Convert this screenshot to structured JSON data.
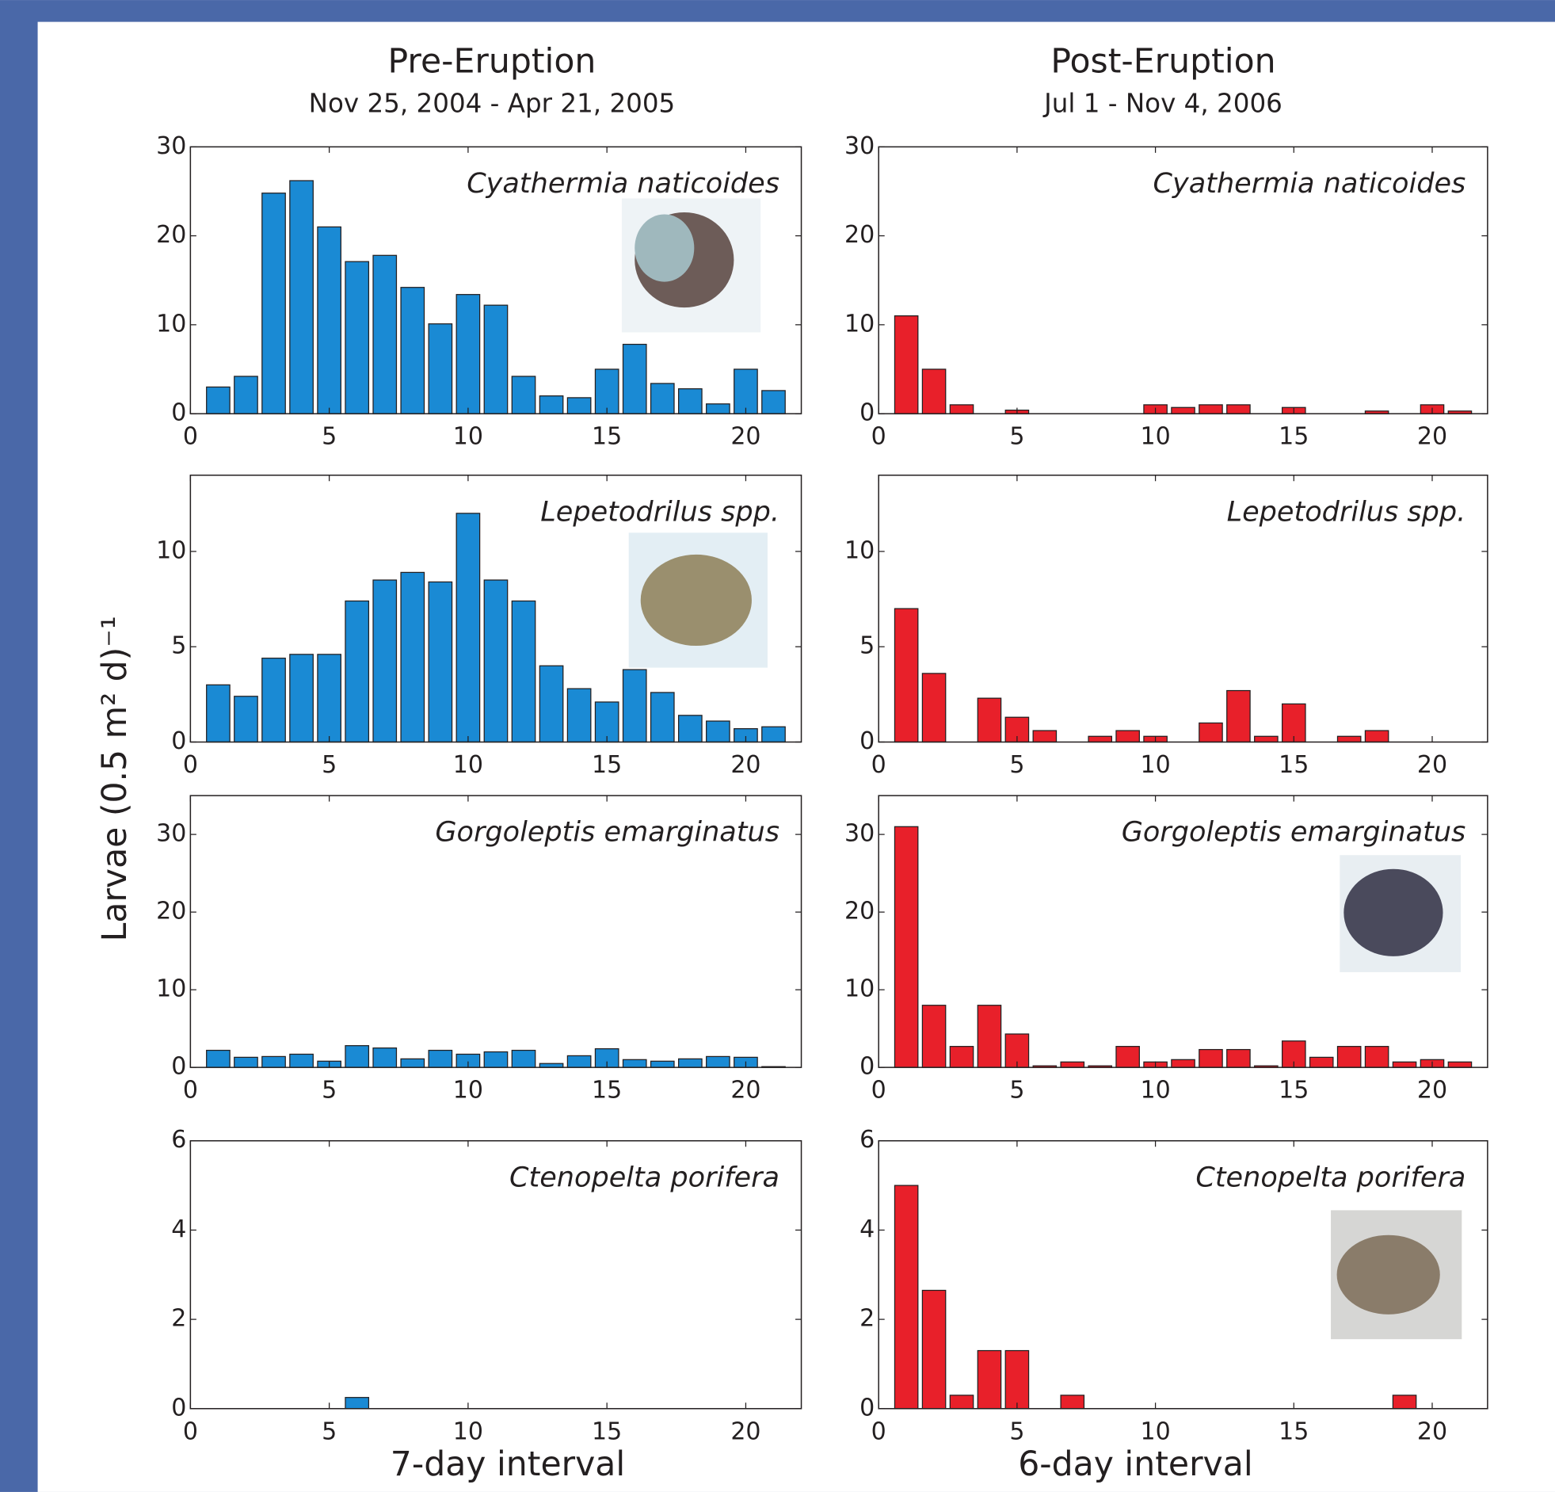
{
  "columns": [
    {
      "title": "Pre-Eruption",
      "subtitle": "Nov 25, 2004 - Apr 21, 2005",
      "xlabel": "7-day interval"
    },
    {
      "title": "Post-Eruption",
      "subtitle": "Jul 1 - Nov 4, 2006",
      "xlabel": "6-day interval"
    }
  ],
  "ylabel": "Larvae (0.5 m² d)⁻¹",
  "chart_data": [
    {
      "type": "bar",
      "annotation": "Cyathermia naticoides",
      "color": "#1a8ad4",
      "x": [
        1,
        2,
        3,
        4,
        5,
        6,
        7,
        8,
        9,
        10,
        11,
        12,
        13,
        14,
        15,
        16,
        17,
        18,
        19,
        20,
        21
      ],
      "values": [
        3,
        4.2,
        24.8,
        26.2,
        21,
        17.1,
        17.8,
        14.2,
        10.1,
        13.4,
        12.2,
        4.2,
        2,
        1.8,
        5,
        7.8,
        3.4,
        2.8,
        1.1,
        5,
        2.6
      ],
      "xlim": [
        0,
        22
      ],
      "ylim": [
        0,
        30
      ],
      "xticks": [
        0,
        5,
        10,
        15,
        20
      ],
      "yticks": [
        0,
        10,
        20,
        30
      ]
    },
    {
      "type": "bar",
      "annotation": "Cyathermia naticoides",
      "color": "#e8202a",
      "x": [
        1,
        2,
        3,
        4,
        5,
        6,
        7,
        8,
        9,
        10,
        11,
        12,
        13,
        14,
        15,
        16,
        17,
        18,
        19,
        20,
        21
      ],
      "values": [
        11,
        5,
        1,
        0,
        0.4,
        0,
        0,
        0,
        0,
        1,
        0.7,
        1,
        1,
        0,
        0.7,
        0,
        0,
        0.3,
        0,
        1,
        0.3
      ],
      "xlim": [
        0,
        22
      ],
      "ylim": [
        0,
        30
      ],
      "xticks": [
        0,
        5,
        10,
        15,
        20
      ],
      "yticks": [
        0,
        10,
        20,
        30
      ]
    },
    {
      "type": "bar",
      "annotation": "Lepetodrilus spp.",
      "color": "#1a8ad4",
      "x": [
        1,
        2,
        3,
        4,
        5,
        6,
        7,
        8,
        9,
        10,
        11,
        12,
        13,
        14,
        15,
        16,
        17,
        18,
        19,
        20,
        21
      ],
      "values": [
        3,
        2.4,
        4.4,
        4.6,
        4.6,
        7.4,
        8.5,
        8.9,
        8.4,
        12,
        8.5,
        7.4,
        4,
        2.8,
        2.1,
        3.8,
        2.6,
        1.4,
        1.1,
        0.7,
        0.8
      ],
      "xlim": [
        0,
        22
      ],
      "ylim": [
        0,
        14
      ],
      "xticks": [
        0,
        5,
        10,
        15,
        20
      ],
      "yticks": [
        0,
        5,
        10
      ]
    },
    {
      "type": "bar",
      "annotation": "Lepetodrilus spp.",
      "color": "#e8202a",
      "x": [
        1,
        2,
        3,
        4,
        5,
        6,
        7,
        8,
        9,
        10,
        11,
        12,
        13,
        14,
        15,
        16,
        17,
        18,
        19,
        20,
        21
      ],
      "values": [
        7,
        3.6,
        0,
        2.3,
        1.3,
        0.6,
        0,
        0.3,
        0.6,
        0.3,
        0,
        1,
        2.7,
        0.3,
        2,
        0,
        0.3,
        0.6,
        0,
        0,
        0
      ],
      "xlim": [
        0,
        22
      ],
      "ylim": [
        0,
        14
      ],
      "xticks": [
        0,
        5,
        10,
        15,
        20
      ],
      "yticks": [
        0,
        5,
        10
      ]
    },
    {
      "type": "bar",
      "annotation": "Gorgoleptis emarginatus",
      "color": "#1a8ad4",
      "x": [
        1,
        2,
        3,
        4,
        5,
        6,
        7,
        8,
        9,
        10,
        11,
        12,
        13,
        14,
        15,
        16,
        17,
        18,
        19,
        20,
        21
      ],
      "values": [
        2.2,
        1.3,
        1.4,
        1.7,
        0.8,
        2.8,
        2.5,
        1.1,
        2.2,
        1.7,
        2,
        2.2,
        0.5,
        1.5,
        2.4,
        1,
        0.8,
        1.1,
        1.4,
        1.3,
        0.1
      ],
      "xlim": [
        0,
        22
      ],
      "ylim": [
        0,
        35
      ],
      "xticks": [
        0,
        5,
        10,
        15,
        20
      ],
      "yticks": [
        0,
        10,
        20,
        30
      ]
    },
    {
      "type": "bar",
      "annotation": "Gorgoleptis emarginatus",
      "color": "#e8202a",
      "x": [
        1,
        2,
        3,
        4,
        5,
        6,
        7,
        8,
        9,
        10,
        11,
        12,
        13,
        14,
        15,
        16,
        17,
        18,
        19,
        20,
        21
      ],
      "values": [
        31,
        8,
        2.7,
        8,
        4.3,
        0.2,
        0.7,
        0.2,
        2.7,
        0.7,
        1,
        2.3,
        2.3,
        0.2,
        3.4,
        1.3,
        2.7,
        2.7,
        0.7,
        1,
        0.7
      ],
      "xlim": [
        0,
        22
      ],
      "ylim": [
        0,
        35
      ],
      "xticks": [
        0,
        5,
        10,
        15,
        20
      ],
      "yticks": [
        0,
        10,
        20,
        30
      ]
    },
    {
      "type": "bar",
      "annotation": "Ctenopelta porifera",
      "color": "#1a8ad4",
      "x": [
        1,
        2,
        3,
        4,
        5,
        6,
        7,
        8,
        9,
        10,
        11,
        12,
        13,
        14,
        15,
        16,
        17,
        18,
        19,
        20,
        21
      ],
      "values": [
        0,
        0,
        0,
        0,
        0,
        0.25,
        0,
        0,
        0,
        0,
        0,
        0,
        0,
        0,
        0,
        0,
        0,
        0,
        0,
        0,
        0
      ],
      "xlim": [
        0,
        22
      ],
      "ylim": [
        0,
        6
      ],
      "xticks": [
        0,
        5,
        10,
        15,
        20
      ],
      "yticks": [
        0,
        2,
        4,
        6
      ]
    },
    {
      "type": "bar",
      "annotation": "Ctenopelta porifera",
      "color": "#e8202a",
      "x": [
        1,
        2,
        3,
        4,
        5,
        6,
        7,
        8,
        9,
        10,
        11,
        12,
        13,
        14,
        15,
        16,
        17,
        18,
        19,
        20,
        21
      ],
      "values": [
        5,
        2.65,
        0.3,
        1.3,
        1.3,
        0,
        0.3,
        0,
        0,
        0,
        0,
        0,
        0,
        0,
        0,
        0,
        0,
        0,
        0.3,
        0,
        0
      ],
      "xlim": [
        0,
        22
      ],
      "ylim": [
        0,
        6
      ],
      "xticks": [
        0,
        5,
        10,
        15,
        20
      ],
      "yticks": [
        0,
        2,
        4,
        6
      ]
    }
  ]
}
